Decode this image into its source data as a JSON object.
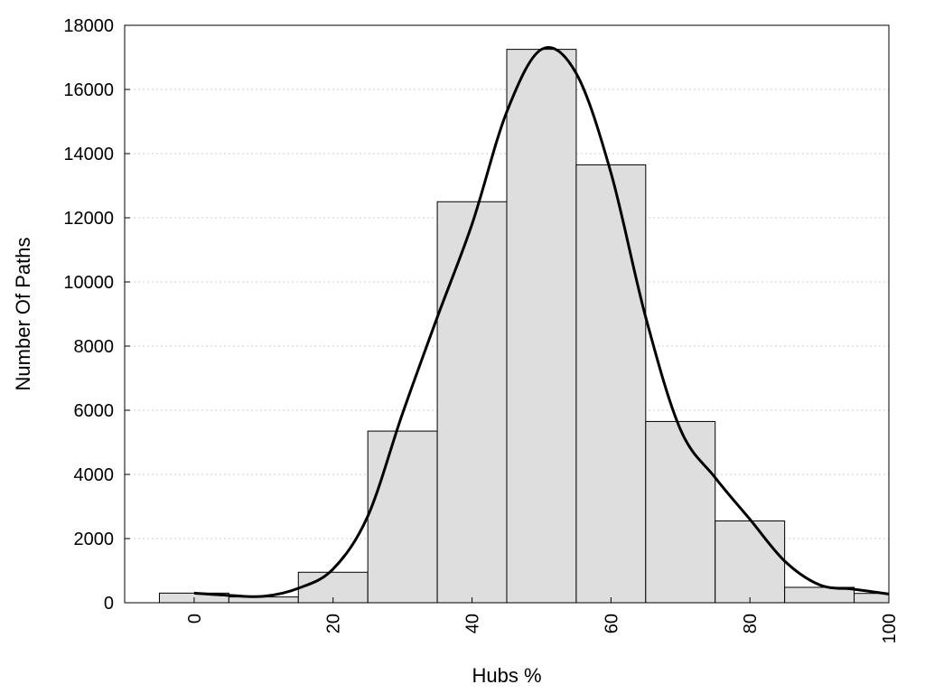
{
  "chart_data": {
    "type": "bar",
    "title": "",
    "xlabel": "Hubs %",
    "ylabel": "Number Of Paths",
    "xlim": [
      -10,
      100
    ],
    "ylim": [
      0,
      18000
    ],
    "x_ticks": [
      0,
      20,
      40,
      60,
      80,
      100
    ],
    "y_ticks": [
      0,
      2000,
      4000,
      6000,
      8000,
      10000,
      12000,
      14000,
      16000,
      18000
    ],
    "grid": "horizontal-dotted",
    "bar_fill": "#dedede",
    "bar_stroke": "#000000",
    "line_color": "#000000",
    "bins": [
      {
        "start": -5,
        "end": 5,
        "count": 300
      },
      {
        "start": 5,
        "end": 15,
        "count": 180
      },
      {
        "start": 15,
        "end": 25,
        "count": 950
      },
      {
        "start": 25,
        "end": 35,
        "count": 5350
      },
      {
        "start": 35,
        "end": 45,
        "count": 12500
      },
      {
        "start": 45,
        "end": 55,
        "count": 17250
      },
      {
        "start": 55,
        "end": 65,
        "count": 13650
      },
      {
        "start": 65,
        "end": 75,
        "count": 5650
      },
      {
        "start": 75,
        "end": 85,
        "count": 2550
      },
      {
        "start": 85,
        "end": 95,
        "count": 480
      },
      {
        "start": 95,
        "end": 100,
        "count": 290
      }
    ],
    "curve": {
      "x": [
        0,
        5,
        10,
        15,
        20,
        25,
        30,
        35,
        40,
        45,
        50,
        55,
        60,
        65,
        70,
        75,
        80,
        85,
        90,
        95,
        100
      ],
      "y": [
        300,
        230,
        200,
        450,
        1050,
        2700,
        5900,
        8900,
        11800,
        15300,
        17250,
        16500,
        13400,
        8900,
        5400,
        3900,
        2600,
        1300,
        560,
        420,
        270
      ]
    }
  }
}
